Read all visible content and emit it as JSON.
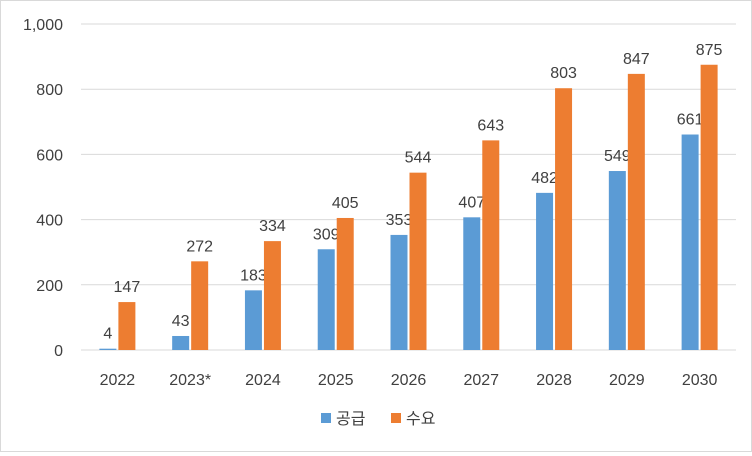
{
  "chart_data": {
    "type": "bar",
    "title": "",
    "xlabel": "",
    "ylabel": "",
    "categories": [
      "2022",
      "2023*",
      "2024",
      "2025",
      "2026",
      "2027",
      "2028",
      "2029",
      "2030"
    ],
    "series": [
      {
        "name": "공급",
        "color": "#5b9bd5",
        "values": [
          4,
          43,
          183,
          309,
          353,
          407,
          482,
          549,
          661
        ]
      },
      {
        "name": "수요",
        "color": "#ed7d31",
        "values": [
          147,
          272,
          334,
          405,
          544,
          643,
          803,
          847,
          875
        ]
      }
    ],
    "ylim": [
      0,
      1000
    ],
    "yticks": [
      0,
      200,
      400,
      600,
      800,
      1000
    ],
    "ytick_labels": [
      "0",
      "200",
      "400",
      "600",
      "800",
      "1,000"
    ],
    "grid": true,
    "legend": "bottom"
  }
}
